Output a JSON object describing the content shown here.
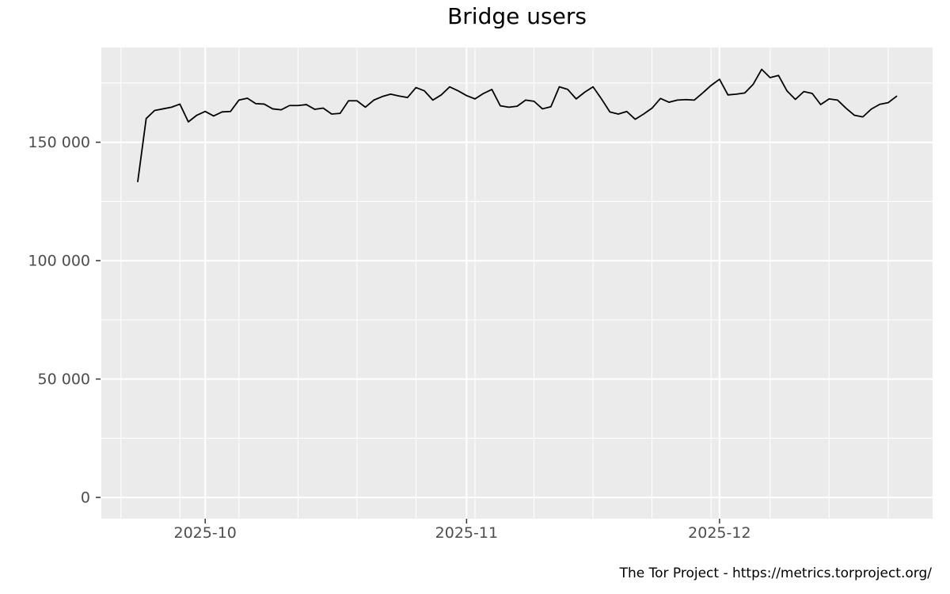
{
  "chart_data": {
    "type": "line",
    "title": "Bridge users",
    "xlabel": "",
    "ylabel": "",
    "source_note": "The Tor Project - https://metrics.torproject.org/",
    "panel_bg": "#EBEBEB",
    "grid_color": "#FFFFFF",
    "line_color": "#000000",
    "axis_text_color": "#4D4D4D",
    "tick_mark_color": "#333333",
    "grid": true,
    "legend": "none",
    "ylim": [
      -9000,
      190000
    ],
    "y_ticks": [
      0,
      50000,
      100000,
      150000
    ],
    "y_tick_labels": [
      "0",
      "50 000",
      "100 000",
      "150 000"
    ],
    "y_minor_ticks": [
      25000,
      75000,
      125000,
      175000
    ],
    "x_tick_labels": [
      "2025-10",
      "2025-11",
      "2025-12"
    ],
    "x_major_day_offsets": [
      8,
      39,
      69
    ],
    "x_minor_day_offsets": [
      -2,
      5,
      12,
      19,
      26,
      33,
      40,
      47,
      54,
      61,
      68,
      75,
      82,
      89
    ],
    "dates": [
      "2025-09-23",
      "2025-09-24",
      "2025-09-25",
      "2025-09-26",
      "2025-09-27",
      "2025-09-28",
      "2025-09-29",
      "2025-09-30",
      "2025-10-01",
      "2025-10-02",
      "2025-10-03",
      "2025-10-04",
      "2025-10-05",
      "2025-10-06",
      "2025-10-07",
      "2025-10-08",
      "2025-10-09",
      "2025-10-10",
      "2025-10-11",
      "2025-10-12",
      "2025-10-13",
      "2025-10-14",
      "2025-10-15",
      "2025-10-16",
      "2025-10-17",
      "2025-10-18",
      "2025-10-19",
      "2025-10-20",
      "2025-10-21",
      "2025-10-22",
      "2025-10-23",
      "2025-10-24",
      "2025-10-25",
      "2025-10-26",
      "2025-10-27",
      "2025-10-28",
      "2025-10-29",
      "2025-10-30",
      "2025-10-31",
      "2025-11-01",
      "2025-11-02",
      "2025-11-03",
      "2025-11-04",
      "2025-11-05",
      "2025-11-06",
      "2025-11-07",
      "2025-11-08",
      "2025-11-09",
      "2025-11-10",
      "2025-11-11",
      "2025-11-12",
      "2025-11-13",
      "2025-11-14",
      "2025-11-15",
      "2025-11-16",
      "2025-11-17",
      "2025-11-18",
      "2025-11-19",
      "2025-11-20",
      "2025-11-21",
      "2025-11-22",
      "2025-11-23",
      "2025-11-24",
      "2025-11-25",
      "2025-11-26",
      "2025-11-27",
      "2025-11-28",
      "2025-11-29",
      "2025-11-30",
      "2025-12-01",
      "2025-12-02",
      "2025-12-03",
      "2025-12-04",
      "2025-12-05",
      "2025-12-06",
      "2025-12-07",
      "2025-12-08",
      "2025-12-09",
      "2025-12-10",
      "2025-12-11",
      "2025-12-12",
      "2025-12-13",
      "2025-12-14",
      "2025-12-15",
      "2025-12-16",
      "2025-12-17",
      "2025-12-18",
      "2025-12-19",
      "2025-12-20",
      "2025-12-21",
      "2025-12-22"
    ],
    "values": [
      133400,
      160000,
      163400,
      164100,
      164800,
      166100,
      158600,
      161400,
      163000,
      161100,
      162800,
      163000,
      167800,
      168600,
      166300,
      166100,
      164100,
      163700,
      165500,
      165500,
      165900,
      163900,
      164400,
      161900,
      162200,
      167500,
      167500,
      164800,
      167800,
      169300,
      170300,
      169500,
      168900,
      173100,
      171700,
      167800,
      170000,
      173400,
      171700,
      169700,
      168300,
      170600,
      172300,
      165400,
      164800,
      165200,
      167800,
      167300,
      164100,
      165000,
      173400,
      172300,
      168300,
      171100,
      173400,
      168300,
      162800,
      161900,
      163000,
      159700,
      161900,
      164400,
      168500,
      166900,
      167800,
      168000,
      167800,
      170800,
      174000,
      176600,
      170000,
      170300,
      170800,
      174500,
      180800,
      177300,
      178200,
      171700,
      168100,
      171400,
      170600,
      165900,
      168300,
      167800,
      164400,
      161400,
      160700,
      164000,
      166000,
      166700,
      169400
    ]
  },
  "footer": {
    "text": "The Tor Project - https://metrics.torproject.org/"
  }
}
